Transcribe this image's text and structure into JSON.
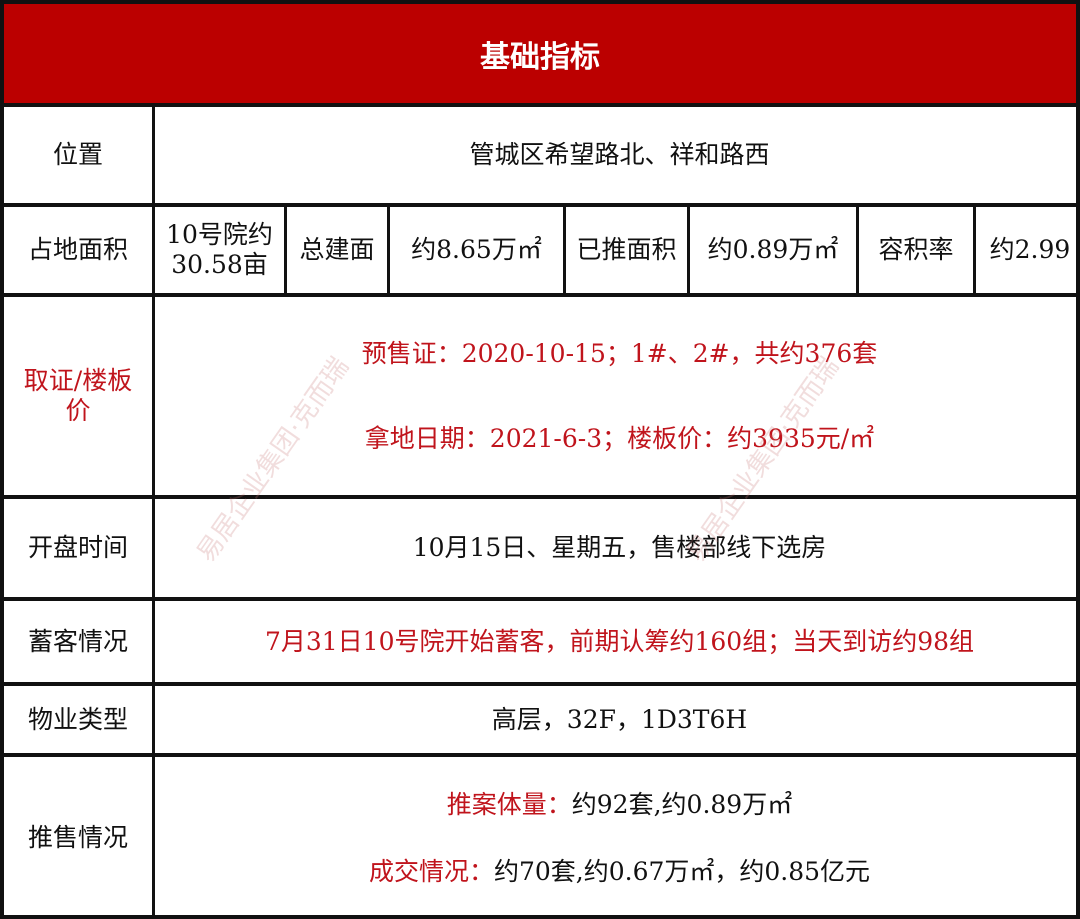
{
  "title": "基础指标",
  "rows": {
    "location": {
      "label": "位置",
      "value": "管城区希望路北、祥和路西"
    },
    "area": {
      "label": "占地面积",
      "site_line1": "10号院约",
      "site_line2": "30.58亩",
      "gfa_label": "总建面",
      "gfa_value": "约8.65万㎡",
      "pushed_label": "已推面积",
      "pushed_value": "约0.89万㎡",
      "far_label": "容积率",
      "far_value": "约2.99"
    },
    "permit": {
      "label": "取证/楼板价",
      "line1": "预售证：2020-10-15；1#、2#，共约376套",
      "line2": "拿地日期：2021-6-3；楼板价：约3935元/㎡"
    },
    "opening": {
      "label": "开盘时间",
      "value": "10月15日、星期五，售楼部线下选房"
    },
    "reservation": {
      "label": "蓄客情况",
      "value": "7月31日10号院开始蓄客，前期认筹约160组；当天到访约98组"
    },
    "property": {
      "label": "物业类型",
      "value": "高层，32F，1D3T6H"
    },
    "sales": {
      "label": "推售情况",
      "line1_label": "推案体量：",
      "line1_value": "约92套,约0.89万㎡",
      "line2_label": "成交情况：",
      "line2_value": "约70套,约0.67万㎡，约0.85亿元"
    }
  },
  "watermark": "易居企业集团·克而瑞",
  "colors": {
    "header": "#bb0000",
    "highlight": "#c0141c"
  }
}
